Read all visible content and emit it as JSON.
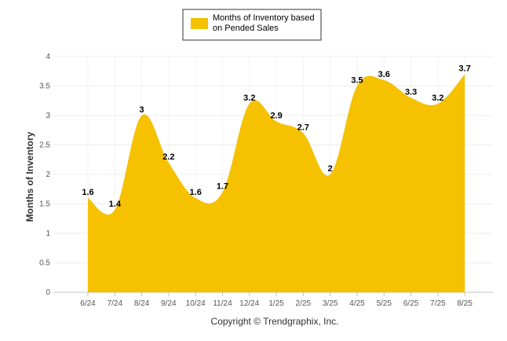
{
  "chart_data": {
    "type": "area",
    "categories": [
      "6/24",
      "7/24",
      "8/24",
      "9/24",
      "10/24",
      "11/24",
      "12/24",
      "1/25",
      "2/25",
      "3/25",
      "4/25",
      "5/25",
      "6/25",
      "7/25",
      "8/25"
    ],
    "series": [
      {
        "name": "Months of Inventory based on Pended Sales",
        "values": [
          1.6,
          1.4,
          3,
          2.2,
          1.6,
          1.7,
          3.2,
          2.9,
          2.7,
          2,
          3.5,
          3.6,
          3.3,
          3.2,
          3.7
        ],
        "color": "#F5C100"
      }
    ],
    "ylabel": "Months of Inventory",
    "ylim": [
      0,
      4
    ],
    "yticks": [
      "0",
      "0.5",
      "1",
      "1.5",
      "2",
      "2.5",
      "3",
      "3.5",
      "4"
    ],
    "legend": {
      "lines": [
        "Months of Inventory based",
        "on Pended Sales"
      ],
      "position": "top-center"
    },
    "grid": true,
    "footer": "Copyright © Trendgraphix, Inc."
  }
}
